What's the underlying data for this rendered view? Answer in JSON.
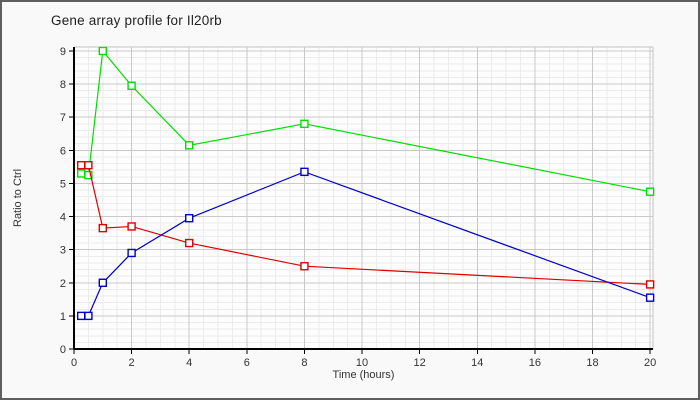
{
  "chart_data": {
    "type": "line",
    "title": "Gene array profile for Il20rb",
    "xlabel": "Time (hours)",
    "ylabel": "Ratio to Ctrl",
    "x": [
      0.25,
      0.5,
      1,
      2,
      4,
      8,
      20
    ],
    "series": [
      {
        "name": "green",
        "color": "#00dd00",
        "values": [
          5.3,
          5.25,
          9.0,
          7.95,
          6.15,
          6.8,
          4.75
        ]
      },
      {
        "name": "red",
        "color": "#dd0000",
        "values": [
          5.55,
          5.55,
          3.65,
          3.7,
          3.2,
          2.5,
          1.95
        ]
      },
      {
        "name": "blue",
        "color": "#0000cc",
        "values": [
          1.0,
          1.0,
          2.0,
          2.9,
          3.95,
          5.35,
          1.55
        ]
      }
    ],
    "x_ticks": [
      0,
      2,
      4,
      6,
      8,
      10,
      12,
      14,
      16,
      18,
      20
    ],
    "y_ticks": [
      0,
      1,
      2,
      3,
      4,
      5,
      6,
      7,
      8,
      9
    ],
    "xlim": [
      0,
      20.1
    ],
    "ylim": [
      0,
      9.12
    ],
    "x_minor_step": 0.5,
    "y_minor_step": 0.2,
    "grid": true,
    "legend": "none",
    "marker": "open-square"
  },
  "colors": {
    "outer_background": "#f9f9f9",
    "plot_background": "#fdfdfd",
    "minor_grid": "#ececec",
    "major_grid": "#c9c9c9",
    "plot_frame": "#c4c4c4",
    "axis": "#000000",
    "title_text": "#1f1f1f",
    "tick_text": "#333333",
    "window_border": "#5f5f5f"
  }
}
